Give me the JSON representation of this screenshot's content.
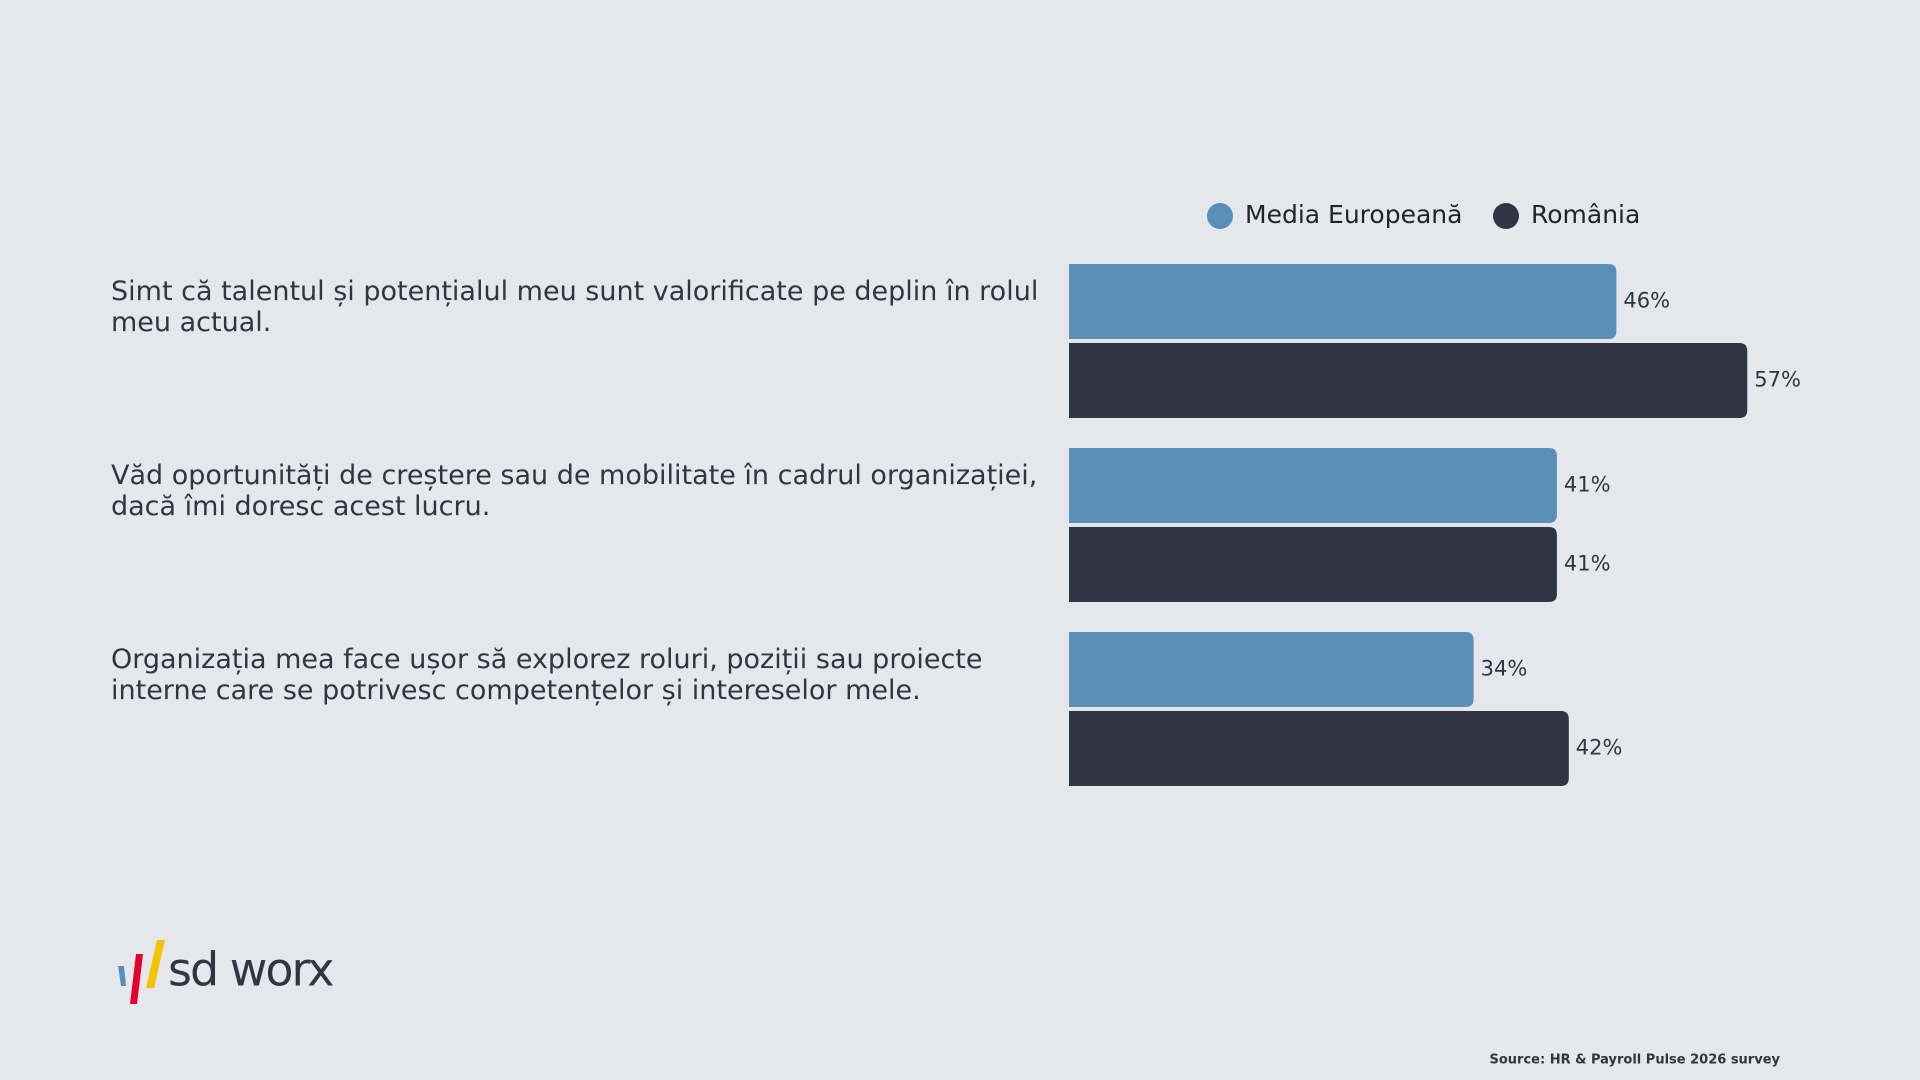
{
  "chart_data": {
    "type": "bar",
    "orientation": "horizontal",
    "categories": [
      "Simt că talentul și potențialul meu sunt valorificate pe deplin în rolul meu actual.",
      "Văd oportunități de creștere sau de mobilitate în cadrul organizației, dacă îmi doresc acest lucru.",
      "Organizația mea face ușor să explorez roluri, poziții sau proiecte interne care se potrivesc competențelor și intereselor mele."
    ],
    "series": [
      {
        "name": "Media Europeană",
        "color": "#5a8fba",
        "values": [
          46,
          41,
          34
        ],
        "value_labels": [
          "46%",
          "41%",
          "34%"
        ]
      },
      {
        "name": "România",
        "color": "#2f3542",
        "values": [
          57,
          41,
          42
        ],
        "value_labels": [
          "57%",
          "41%",
          "42%"
        ]
      }
    ],
    "legend": "top-right"
  },
  "logo": "sd worx",
  "source": "Source: HR & Payroll Pulse 2026 survey"
}
